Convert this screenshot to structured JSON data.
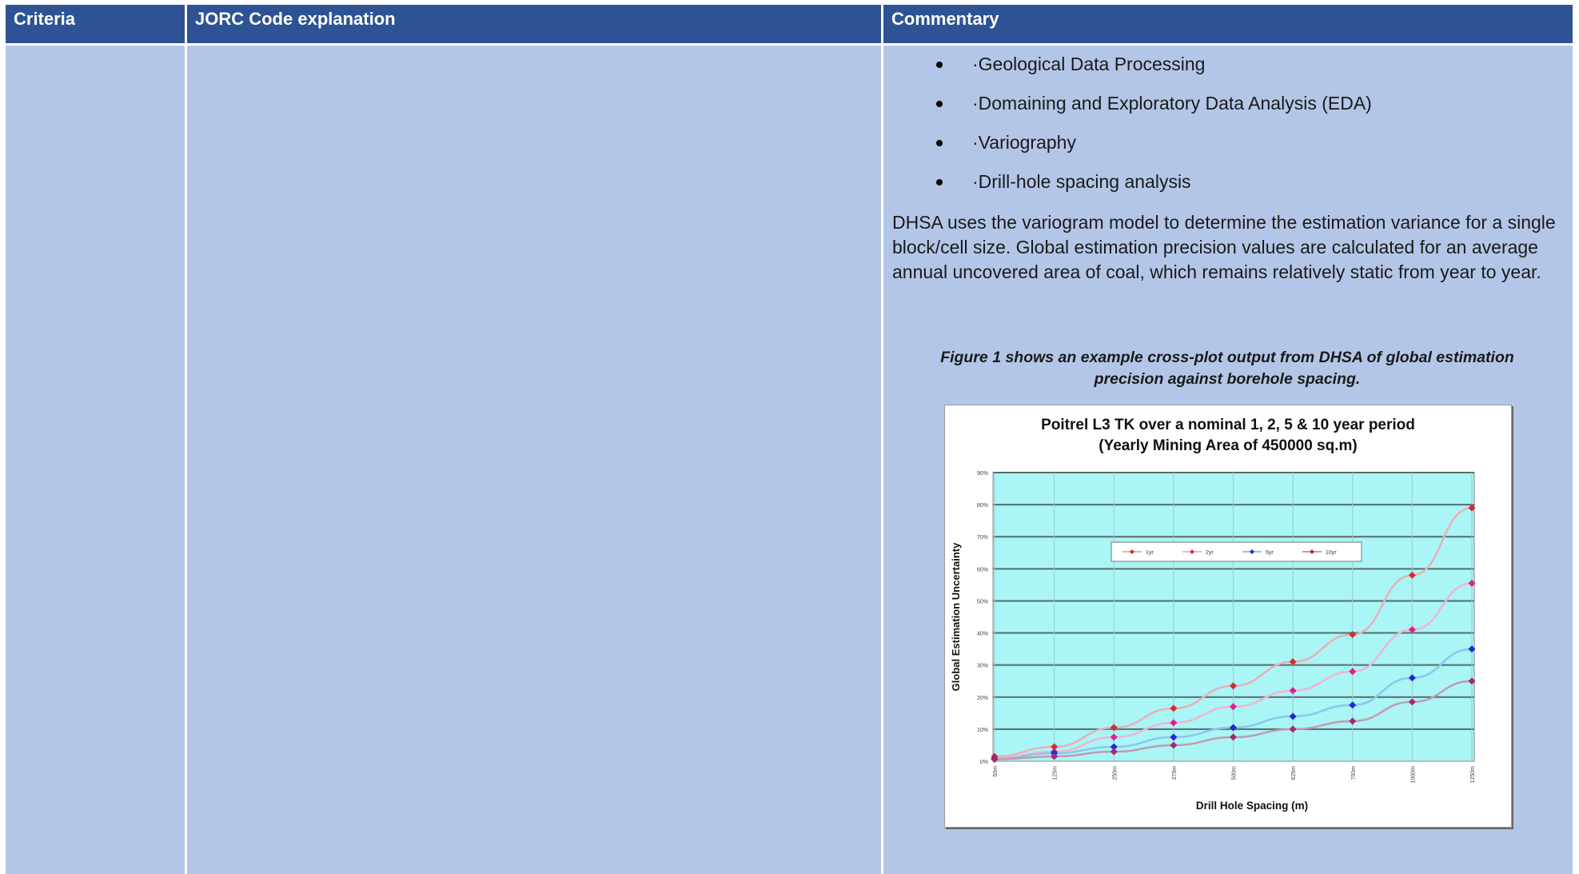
{
  "table": {
    "headers": [
      "Criteria",
      "JORC Code explanation",
      "Commentary"
    ],
    "commentary": {
      "bullets": [
        "·Geological Data Processing",
        "·Domaining and Exploratory Data Analysis (EDA)",
        "·Variography",
        "·Drill-hole spacing analysis"
      ],
      "paragraph": "DHSA uses the variogram model to determine the estimation variance for a single block/cell size. Global estimation precision values are calculated for an average annual uncovered area of coal, which remains relatively static from year to year.",
      "figure_caption": "Figure 1 shows an example cross-plot output from DHSA of global estimation precision against borehole spacing."
    }
  },
  "chart_data": {
    "type": "line",
    "title": "Poitrel L3 TK over a nominal  1, 2, 5 & 10 year period",
    "subtitle": "(Yearly Mining Area of 450000 sq.m)",
    "xlabel": "Drill Hole Spacing (m)",
    "ylabel": "Global Estimation Uncertainty",
    "categories": [
      "50m",
      "125m",
      "250m",
      "375m",
      "500m",
      "625m",
      "750m",
      "1000m",
      "1250m"
    ],
    "yticks": [
      "0%",
      "10%",
      "20%",
      "30%",
      "40%",
      "50%",
      "60%",
      "70%",
      "80%",
      "90%"
    ],
    "ylim": [
      0,
      90
    ],
    "grid": true,
    "plot_background": "#aaf5f5",
    "legend_position": "top-center",
    "series": [
      {
        "name": "1yr",
        "color": "#d42d2d",
        "line_color": "#e8b0b8",
        "values": [
          1.5,
          4.5,
          10.5,
          16.5,
          23.5,
          31,
          39.5,
          58,
          79
        ]
      },
      {
        "name": "2yr",
        "color": "#e0208c",
        "line_color": "#f0b4d2",
        "values": [
          1,
          3,
          7.5,
          12,
          17,
          22,
          28,
          41,
          55.5
        ]
      },
      {
        "name": "5yr",
        "color": "#1f28d6",
        "line_color": "#8cc6ec",
        "values": [
          0.8,
          2.5,
          4.5,
          7.5,
          10.5,
          14,
          17.5,
          26,
          35
        ]
      },
      {
        "name": "10yr",
        "color": "#a8286e",
        "line_color": "#c49aae",
        "values": [
          0.6,
          1.5,
          3,
          5,
          7.5,
          10,
          12.5,
          18.5,
          25
        ]
      }
    ]
  }
}
